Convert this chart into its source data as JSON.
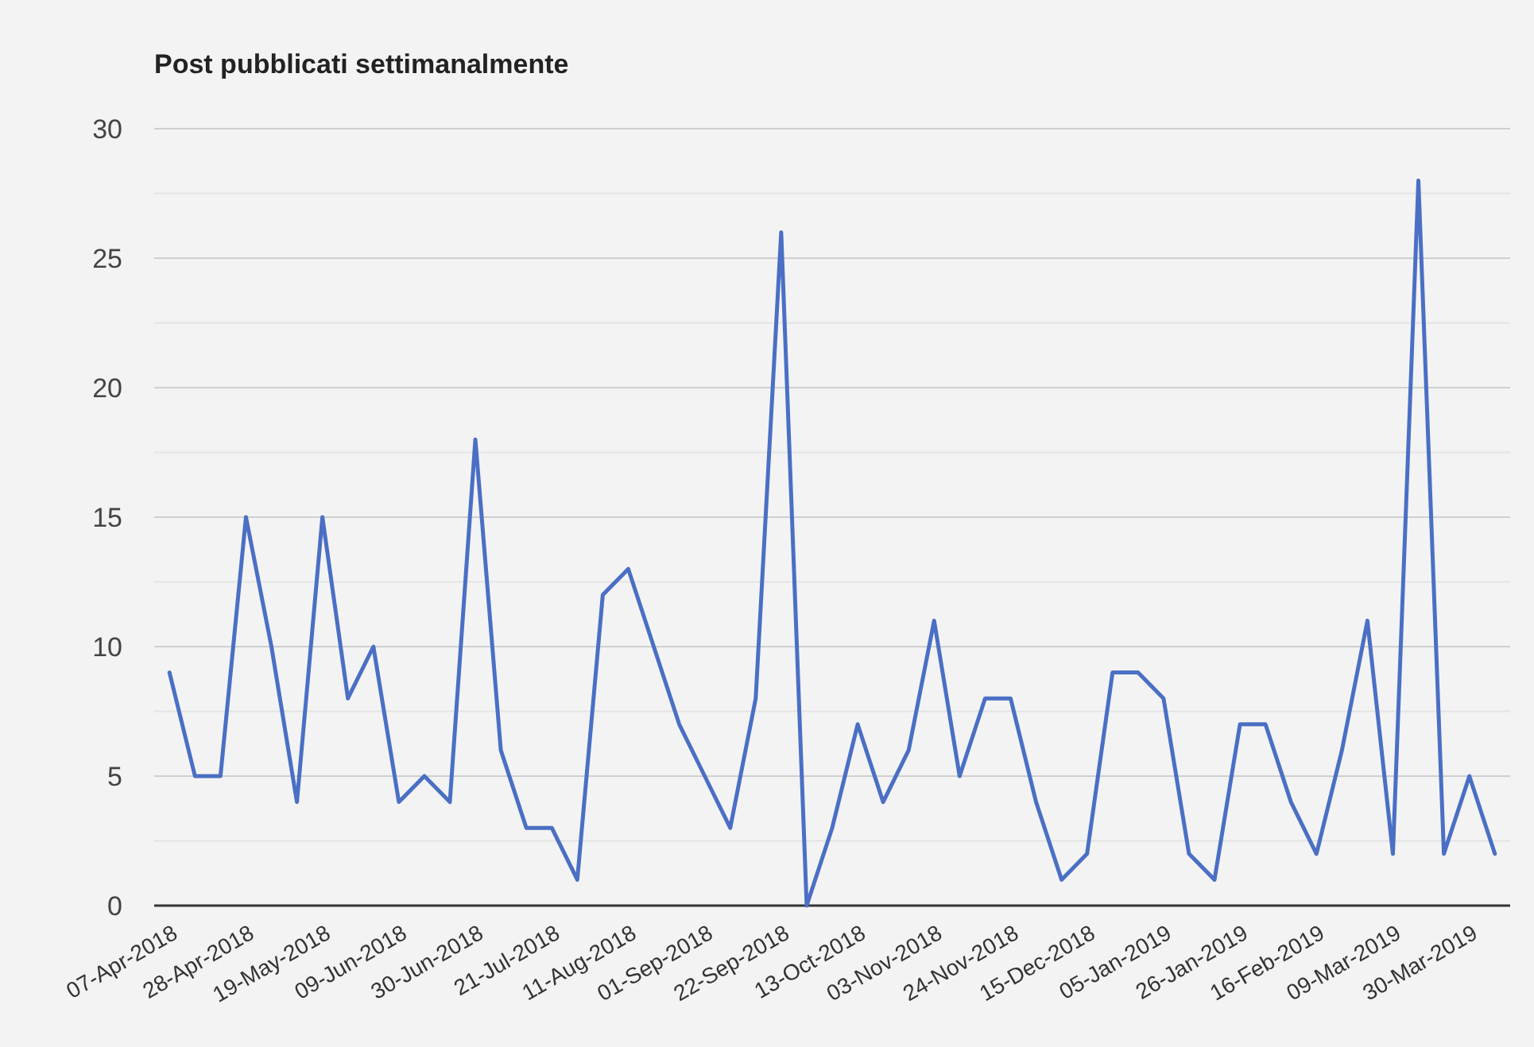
{
  "chart_data": {
    "type": "line",
    "title": "Post pubblicati settimanalmente",
    "categories": [
      "07-Apr-2018",
      null,
      null,
      "28-Apr-2018",
      null,
      null,
      "19-May-2018",
      null,
      null,
      "09-Jun-2018",
      null,
      null,
      "30-Jun-2018",
      null,
      null,
      "21-Jul-2018",
      null,
      null,
      "11-Aug-2018",
      null,
      null,
      "01-Sep-2018",
      null,
      null,
      "22-Sep-2018",
      null,
      null,
      "13-Oct-2018",
      null,
      null,
      "03-Nov-2018",
      null,
      null,
      "24-Nov-2018",
      null,
      null,
      "15-Dec-2018",
      null,
      null,
      "05-Jan-2019",
      null,
      null,
      "26-Jan-2019",
      null,
      null,
      "16-Feb-2019",
      null,
      null,
      "09-Mar-2019",
      null,
      null,
      "30-Mar-2019",
      null
    ],
    "series": [
      {
        "color": "#4a6fc4",
        "values": [
          9,
          5,
          5,
          15,
          10,
          4,
          15,
          8,
          10,
          4,
          5,
          4,
          18,
          6,
          3,
          3,
          1,
          12,
          13,
          10,
          7,
          5,
          3,
          8,
          26,
          0,
          3,
          7,
          4,
          6,
          11,
          5,
          8,
          8,
          4,
          1,
          2,
          9,
          9,
          8,
          2,
          1,
          7,
          7,
          4,
          2,
          6,
          11,
          2,
          28,
          2,
          5,
          2
        ]
      }
    ],
    "ylim": [
      0,
      30
    ],
    "yticks": [
      0,
      {
        "value": 2.5,
        "label": null
      },
      5,
      {
        "value": 7.5,
        "label": null
      },
      10,
      {
        "value": 12.5,
        "label": null
      },
      15,
      {
        "value": 17.5,
        "label": null
      },
      20,
      {
        "value": 22.5,
        "label": null
      },
      25,
      {
        "value": 27.5,
        "label": null
      },
      30
    ],
    "grid": "y",
    "marker": "none",
    "line_style": "solid"
  }
}
